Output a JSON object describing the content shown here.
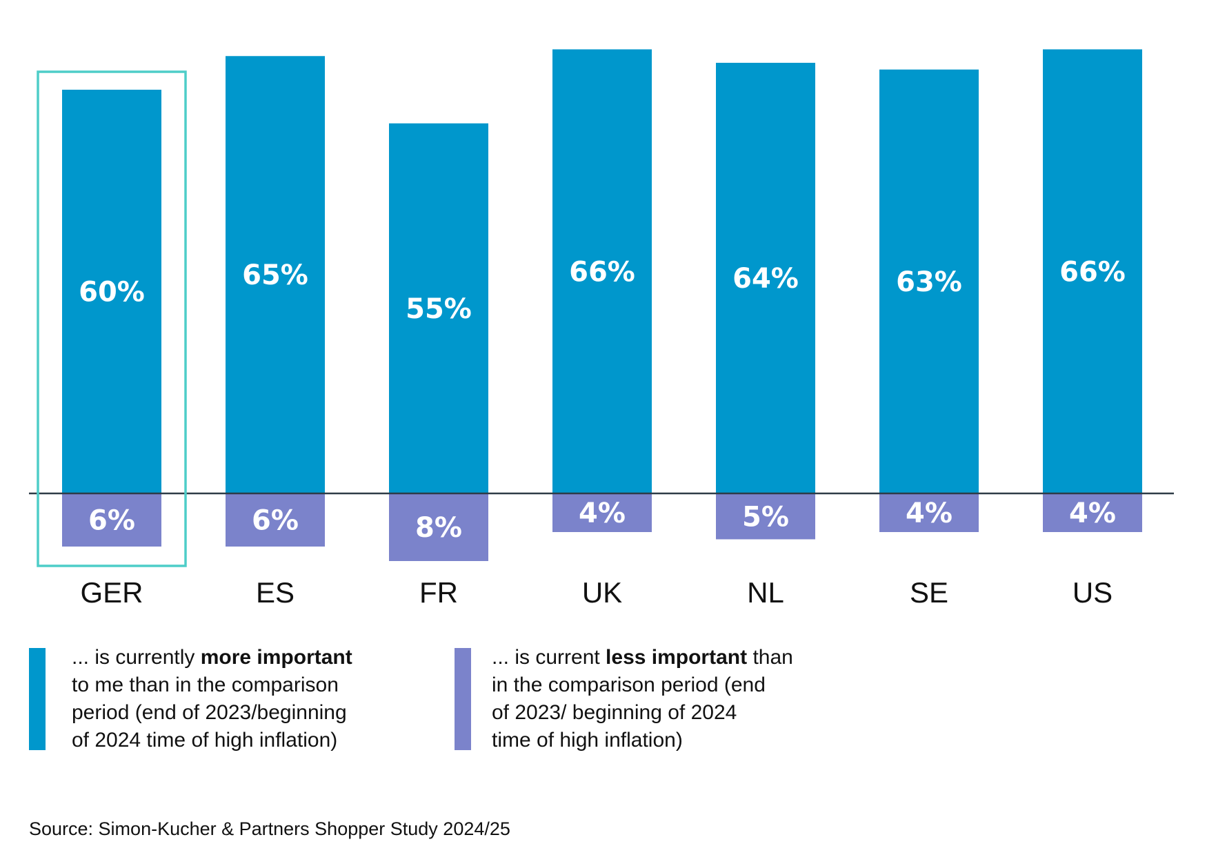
{
  "colors": {
    "more": "#0097CC",
    "less": "#7B83CB",
    "highlight": "#4ECDC8",
    "axis": "#2E3B47"
  },
  "chart_data": {
    "type": "bar",
    "categories": [
      "GER",
      "ES",
      "FR",
      "UK",
      "NL",
      "SE",
      "US"
    ],
    "series": [
      {
        "name": "more important",
        "values": [
          60,
          65,
          55,
          66,
          64,
          63,
          66
        ],
        "labels": [
          "60%",
          "65%",
          "55%",
          "66%",
          "64%",
          "63%",
          "66%"
        ]
      },
      {
        "name": "less important",
        "values": [
          -6,
          -6,
          -8,
          -4,
          -5,
          -4,
          -4
        ],
        "labels": [
          "6%",
          "6%",
          "8%",
          "4%",
          "5%",
          "4%",
          "4%"
        ]
      }
    ],
    "highlighted_category": "GER",
    "title": "",
    "xlabel": "",
    "ylabel": "",
    "grid": false,
    "legend_position": "bottom"
  },
  "legend": {
    "more": {
      "prefix": "... is currently ",
      "bold": "more important",
      "lines": [
        "to me than in the comparison",
        "period (end of 2023/beginning",
        "of 2024 time of high inflation)"
      ]
    },
    "less": {
      "prefix": "... is current ",
      "bold": "less important",
      "suffix": " than",
      "lines": [
        "in the comparison period (end",
        "of 2023/ beginning of 2024",
        "time of high inflation)"
      ]
    }
  },
  "source": "Source: Simon-Kucher & Partners Shopper Study 2024/25"
}
